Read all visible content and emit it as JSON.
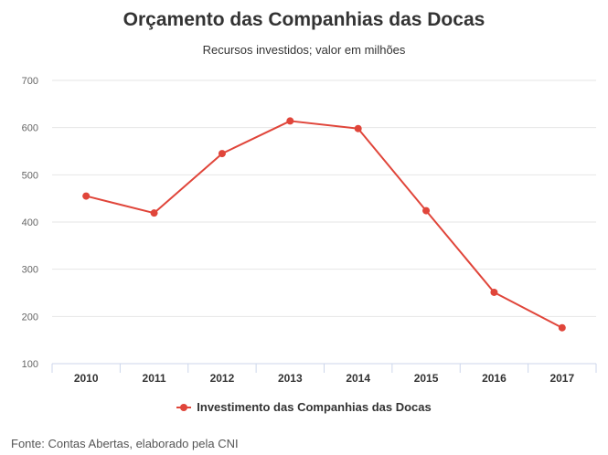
{
  "chart_data": {
    "type": "line",
    "title": "Orçamento das Companhias das Docas",
    "subtitle": "Recursos investidos; valor em milhões",
    "xlabel": "",
    "ylabel": "",
    "categories": [
      "2010",
      "2011",
      "2012",
      "2013",
      "2014",
      "2015",
      "2016",
      "2017"
    ],
    "series": [
      {
        "name": "Investimento das Companhias das Docas",
        "values": [
          455,
          419,
          545,
          614,
          598,
          424,
          251,
          176
        ],
        "color": "#e0453a"
      }
    ],
    "ylim": [
      100,
      700
    ],
    "yticks": [
      "100",
      "200",
      "300",
      "400",
      "500",
      "600",
      "700"
    ],
    "grid": true,
    "legend_position": "bottom-center"
  },
  "source": "Fonte: Contas Abertas, elaborado pela CNI"
}
